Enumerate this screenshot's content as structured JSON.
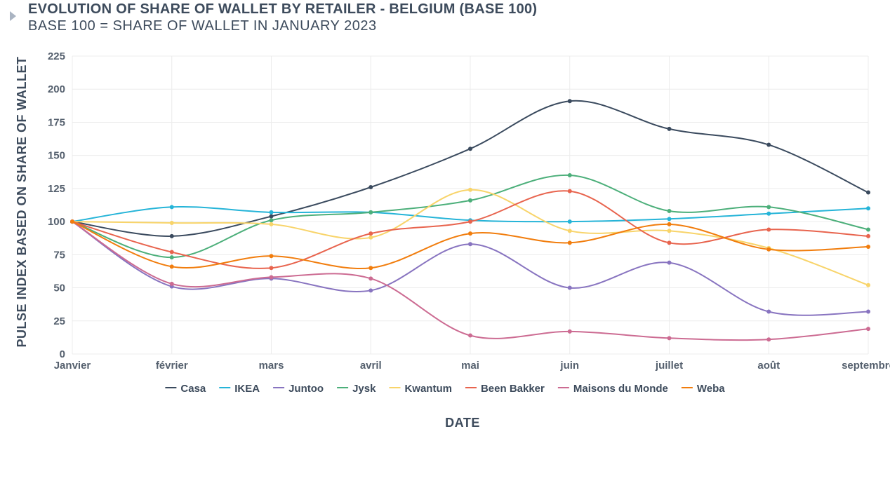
{
  "collapse_control": "caret-right-icon",
  "chart_data": {
    "type": "line",
    "title": "EVOLUTION OF SHARE OF WALLET BY RETAILER - BELGIUM (BASE 100)",
    "subtitle": "BASE 100 = SHARE OF WALLET IN JANUARY 2023",
    "xlabel": "DATE",
    "ylabel": "PULSE INDEX BASED ON SHARE OF WALLET",
    "categories": [
      "Janvier",
      "février",
      "mars",
      "avril",
      "mai",
      "juin",
      "juillet",
      "août",
      "septembre"
    ],
    "ylim": [
      0,
      225
    ],
    "yticks": [
      0,
      25,
      50,
      75,
      100,
      125,
      150,
      175,
      200,
      225
    ],
    "grid": true,
    "legend_position": "bottom",
    "series": [
      {
        "name": "Casa",
        "color": "#3a4a5e",
        "values": [
          100,
          89,
          104,
          126,
          155,
          191,
          170,
          158,
          122
        ]
      },
      {
        "name": "IKEA",
        "color": "#25b4d8",
        "values": [
          100,
          111,
          107,
          107,
          101,
          100,
          102,
          106,
          110
        ]
      },
      {
        "name": "Juntoo",
        "color": "#8874c0",
        "values": [
          100,
          51,
          57,
          48,
          83,
          50,
          69,
          32,
          32
        ]
      },
      {
        "name": "Jysk",
        "color": "#4caf7a",
        "values": [
          100,
          73,
          101,
          107,
          116,
          135,
          108,
          111,
          94
        ]
      },
      {
        "name": "Kwantum",
        "color": "#f8d46a",
        "values": [
          100,
          99,
          98,
          88,
          124,
          93,
          93,
          80,
          52
        ]
      },
      {
        "name": "Been Bakker",
        "color": "#e8644e",
        "values": [
          100,
          77,
          65,
          91,
          100,
          123,
          84,
          94,
          89
        ]
      },
      {
        "name": "Maisons du Monde",
        "color": "#cc6b92",
        "values": [
          100,
          53,
          58,
          57,
          14,
          17,
          12,
          11,
          19
        ]
      },
      {
        "name": "Weba",
        "color": "#f17d0d",
        "values": [
          100,
          66,
          74,
          65,
          91,
          84,
          98,
          79,
          81
        ]
      }
    ]
  }
}
